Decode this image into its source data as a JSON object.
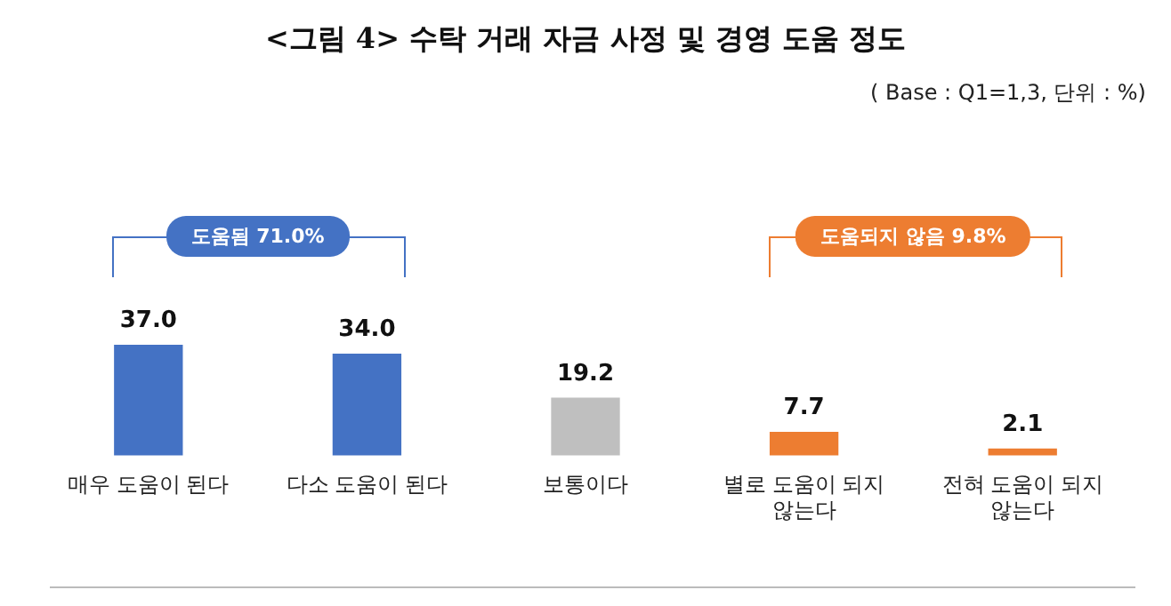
{
  "chart_data": {
    "type": "bar",
    "title": "<그림 4> 수탁 거래 자금 사정 및 경영 도움 정도",
    "categories": [
      "매우 도움이 된다",
      "다소 도움이 된다",
      "보통이다",
      "별로 도움이 되지 않는다",
      "전혀 도움이 되지 않는다"
    ],
    "values": [
      37.0,
      34.0,
      19.2,
      7.7,
      2.1
    ],
    "colors": [
      "#4472c4",
      "#4472c4",
      "#bfbfbf",
      "#ed7d31",
      "#ed7d31"
    ],
    "value_labels": [
      "37.0",
      "34.0",
      "19.2",
      "7.7",
      "2.1"
    ],
    "grid": false,
    "legend": false,
    "tick_labels": "x",
    "annotations": [
      "( Base : Q1=1,3, 단위 : %)",
      "도움됨 71.0%",
      "도움되지 않음 9.8%"
    ]
  }
}
